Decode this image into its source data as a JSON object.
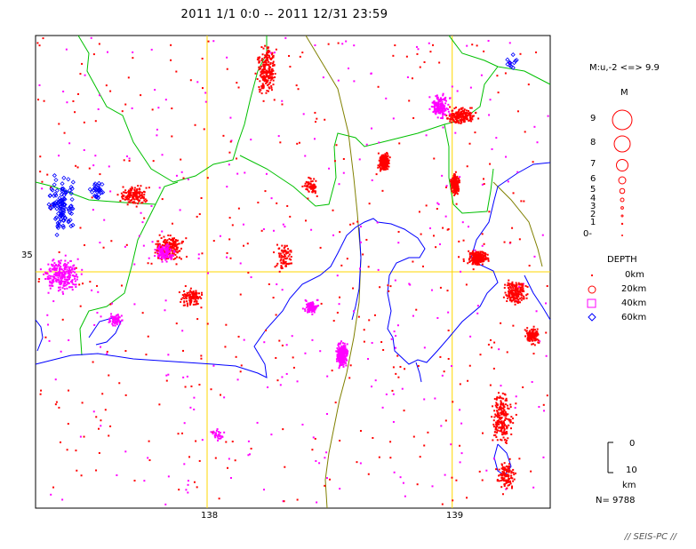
{
  "title": "2011 1/1 0:0 -- 2011 12/31 23:59",
  "axes": {
    "x_ticks": [
      {
        "value": 138,
        "label": "138"
      },
      {
        "value": 139,
        "label": "139"
      }
    ],
    "y_ticks": [
      {
        "value": 35,
        "label": "35"
      }
    ],
    "lon_range": [
      137.3,
      139.4
    ],
    "lat_range": [
      34.1,
      35.9
    ]
  },
  "magnitude_legend": {
    "range_label": "M:u,-2 <=> 9.9",
    "heading": "M",
    "levels": [
      "9",
      "8",
      "7",
      "6",
      "5",
      "4",
      "3",
      "2",
      "1",
      "0-"
    ]
  },
  "depth_legend": {
    "heading": "DEPTH",
    "items": [
      {
        "label": "0km",
        "color": "#ff0000",
        "shape": "dot"
      },
      {
        "label": "20km",
        "color": "#ff0000",
        "shape": "circle"
      },
      {
        "label": "40km",
        "color": "#ff00ff",
        "shape": "square"
      },
      {
        "label": "60km",
        "color": "#0000ff",
        "shape": "diamond"
      }
    ]
  },
  "scale_bar": {
    "top_label": "0",
    "bottom_label": "10",
    "unit": "km"
  },
  "count": "N= 9788",
  "footer": "// SEIS-PC //",
  "colors": {
    "shallow": "#ff0000",
    "mid": "#ff00ff",
    "deep": "#0000ff",
    "coast": "#0000ff",
    "prefecture": "#00c000",
    "plate": "#808000",
    "grid": "#ffd700"
  }
}
